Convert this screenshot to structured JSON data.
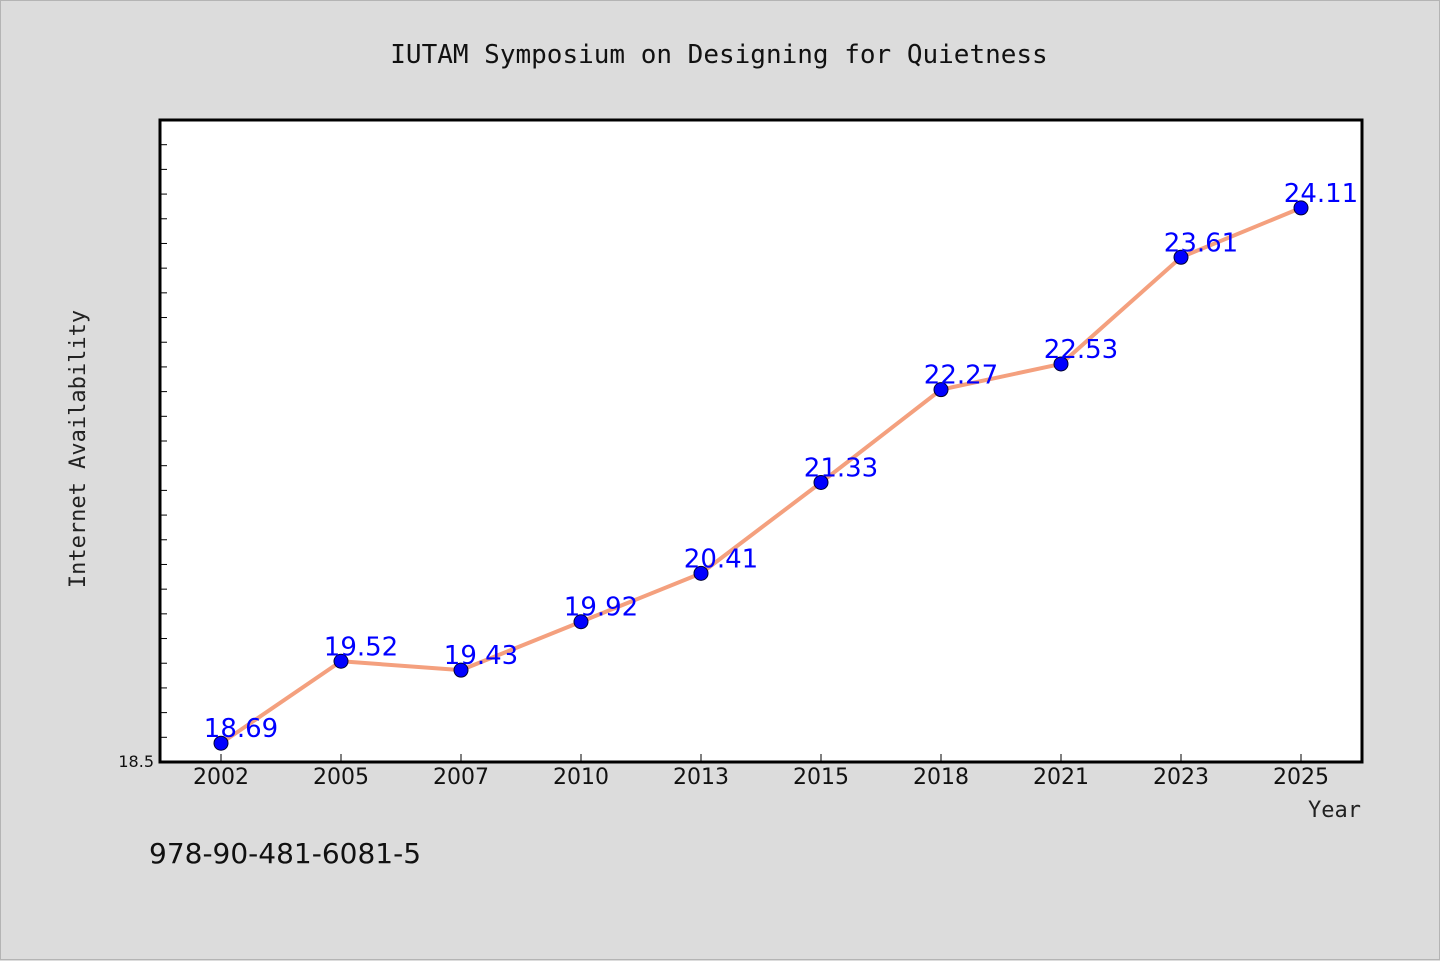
{
  "chart_data": {
    "type": "line",
    "title": "IUTAM Symposium on Designing for Quietness",
    "xlabel": "Year",
    "ylabel": "Internet Availability",
    "categories": [
      "2002",
      "2005",
      "2007",
      "2010",
      "2013",
      "2015",
      "2018",
      "2021",
      "2023",
      "2025"
    ],
    "series": [
      {
        "values": [
          18.69,
          19.52,
          19.43,
          19.92,
          20.41,
          21.33,
          22.27,
          22.53,
          23.61,
          24.11
        ],
        "labels": [
          "18.69",
          "19.52",
          "19.43",
          "19.92",
          "20.41",
          "21.33",
          "22.27",
          "22.53",
          "23.61",
          "24.11"
        ]
      }
    ],
    "ylim": [
      18.5,
      25.0
    ],
    "y_ticks_labeled": [
      "18.5"
    ],
    "grid": false,
    "line_color": "#f4a07e",
    "marker_color": "#0000ff",
    "label_color": "#0000ff",
    "footer_text": "978-90-481-6081-5"
  }
}
